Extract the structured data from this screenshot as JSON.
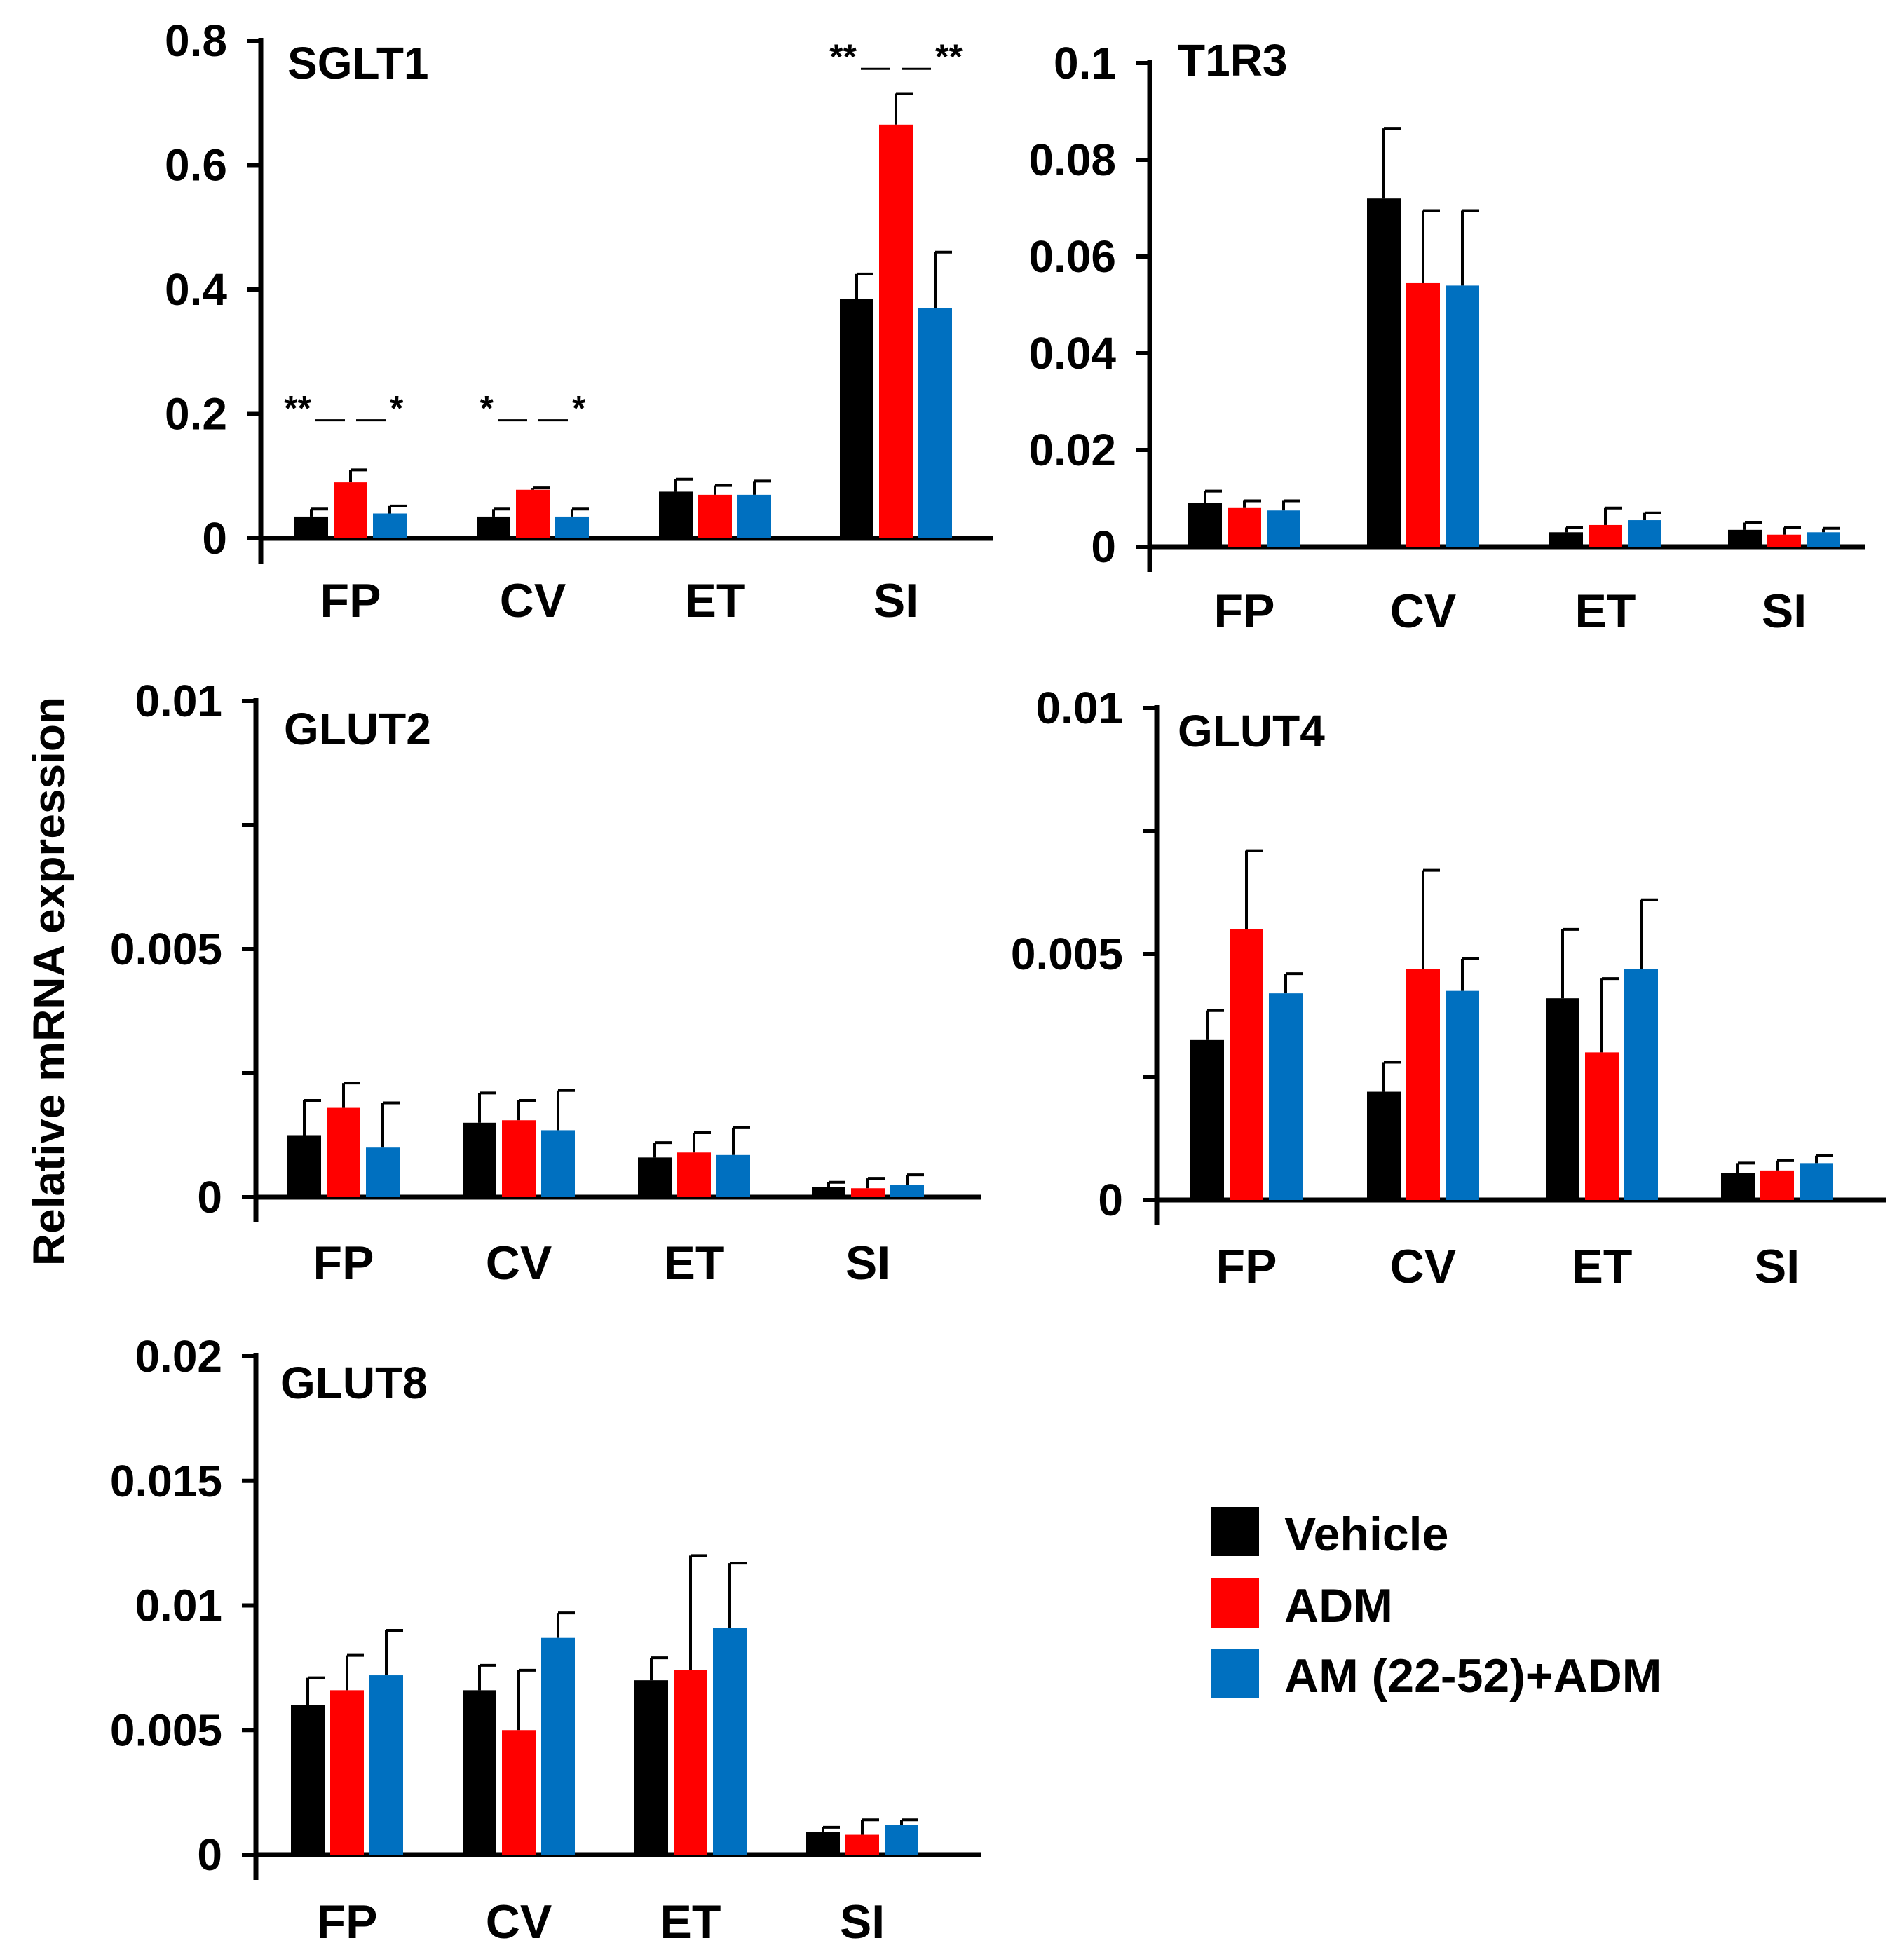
{
  "figure": {
    "ylabel": "Relative mRNA expression",
    "legend": [
      {
        "label": "Vehicle",
        "color": "#000000"
      },
      {
        "label": "ADM",
        "color": "#ff0000"
      },
      {
        "label": "AM (22-52)+ADM",
        "color": "#0070c0"
      }
    ]
  },
  "chart_data": [
    {
      "type": "bar",
      "title": "SGLT1",
      "categories": [
        "FP",
        "CV",
        "ET",
        "SI"
      ],
      "ylim": [
        0,
        0.8
      ],
      "yticks": [
        {
          "v": 0,
          "label": "0"
        },
        {
          "v": 0.2,
          "label": "0.2"
        },
        {
          "v": 0.4,
          "label": "0.4"
        },
        {
          "v": 0.6,
          "label": "0.6"
        },
        {
          "v": 0.8,
          "label": "0.8"
        }
      ],
      "series": [
        {
          "name": "Vehicle",
          "values": [
            0.035,
            0.035,
            0.075,
            0.385
          ],
          "errors": [
            0.012,
            0.012,
            0.02,
            0.04
          ]
        },
        {
          "name": "ADM",
          "values": [
            0.09,
            0.078,
            0.07,
            0.665
          ],
          "errors": [
            0.02,
            0.003,
            0.015,
            0.05
          ]
        },
        {
          "name": "AM (22-52)+ADM",
          "values": [
            0.04,
            0.035,
            0.07,
            0.37
          ],
          "errors": [
            0.012,
            0.012,
            0.022,
            0.09
          ]
        }
      ],
      "annotations": [
        {
          "category": 0,
          "left": "**",
          "right": "*",
          "y": 0.21
        },
        {
          "category": 1,
          "left": "*",
          "right": "*",
          "y": 0.21
        },
        {
          "category": 3,
          "left": "**",
          "right": "**",
          "y": 0.775
        }
      ]
    },
    {
      "type": "bar",
      "title": "T1R3",
      "categories": [
        "FP",
        "CV",
        "ET",
        "SI"
      ],
      "ylim": [
        0,
        0.1
      ],
      "yticks": [
        {
          "v": 0,
          "label": "0"
        },
        {
          "v": 0.02,
          "label": "0.02"
        },
        {
          "v": 0.04,
          "label": "0.04"
        },
        {
          "v": 0.06,
          "label": "0.06"
        },
        {
          "v": 0.08,
          "label": "0.08"
        },
        {
          "v": 0.1,
          "label": "0.1"
        }
      ],
      "series": [
        {
          "name": "Vehicle",
          "values": [
            0.009,
            0.072,
            0.003,
            0.0035
          ],
          "errors": [
            0.0025,
            0.0145,
            0.001,
            0.0015
          ]
        },
        {
          "name": "ADM",
          "values": [
            0.008,
            0.0545,
            0.0045,
            0.0025
          ],
          "errors": [
            0.0015,
            0.015,
            0.0035,
            0.0015
          ]
        },
        {
          "name": "AM (22-52)+ADM",
          "values": [
            0.0075,
            0.054,
            0.0055,
            0.003
          ],
          "errors": [
            0.002,
            0.0155,
            0.0015,
            0.0008
          ]
        }
      ],
      "annotations": []
    },
    {
      "type": "bar",
      "title": "GLUT2",
      "categories": [
        "FP",
        "CV",
        "ET",
        "SI"
      ],
      "ylim": [
        0,
        0.01
      ],
      "yticks": [
        {
          "v": 0,
          "label": "0"
        },
        {
          "v": 0.0025,
          "label": ""
        },
        {
          "v": 0.005,
          "label": "0.005"
        },
        {
          "v": 0.0075,
          "label": ""
        },
        {
          "v": 0.01,
          "label": "0.01"
        }
      ],
      "series": [
        {
          "name": "Vehicle",
          "values": [
            0.00125,
            0.0015,
            0.0008,
            0.0002
          ],
          "errors": [
            0.0007,
            0.0006,
            0.0003,
            0.0001
          ]
        },
        {
          "name": "ADM",
          "values": [
            0.0018,
            0.00155,
            0.0009,
            0.00018
          ],
          "errors": [
            0.0005,
            0.0004,
            0.0004,
            0.0002
          ]
        },
        {
          "name": "AM (22-52)+ADM",
          "values": [
            0.001,
            0.00135,
            0.00085,
            0.00025
          ],
          "errors": [
            0.0009,
            0.0008,
            0.00055,
            0.0002
          ]
        }
      ],
      "annotations": []
    },
    {
      "type": "bar",
      "title": "GLUT4",
      "categories": [
        "FP",
        "CV",
        "ET",
        "SI"
      ],
      "ylim": [
        0,
        0.01
      ],
      "yticks": [
        {
          "v": 0,
          "label": "0"
        },
        {
          "v": 0.0025,
          "label": ""
        },
        {
          "v": 0.005,
          "label": "0.005"
        },
        {
          "v": 0.0075,
          "label": ""
        },
        {
          "v": 0.01,
          "label": "0.01"
        }
      ],
      "series": [
        {
          "name": "Vehicle",
          "values": [
            0.00325,
            0.0022,
            0.0041,
            0.00055
          ],
          "errors": [
            0.0006,
            0.0006,
            0.0014,
            0.0002
          ]
        },
        {
          "name": "ADM",
          "values": [
            0.0055,
            0.0047,
            0.003,
            0.0006
          ],
          "errors": [
            0.0016,
            0.002,
            0.0015,
            0.0002
          ]
        },
        {
          "name": "AM (22-52)+ADM",
          "values": [
            0.0042,
            0.00425,
            0.0047,
            0.00075
          ],
          "errors": [
            0.0004,
            0.00065,
            0.0014,
            0.00015
          ]
        }
      ],
      "annotations": []
    },
    {
      "type": "bar",
      "title": "GLUT8",
      "categories": [
        "FP",
        "CV",
        "ET",
        "SI"
      ],
      "ylim": [
        0,
        0.02
      ],
      "yticks": [
        {
          "v": 0,
          "label": "0"
        },
        {
          "v": 0.005,
          "label": "0.005"
        },
        {
          "v": 0.01,
          "label": "0.01"
        },
        {
          "v": 0.015,
          "label": "0.015"
        },
        {
          "v": 0.02,
          "label": "0.02"
        }
      ],
      "series": [
        {
          "name": "Vehicle",
          "values": [
            0.006,
            0.0066,
            0.007,
            0.0009
          ],
          "errors": [
            0.0011,
            0.001,
            0.0009,
            0.0002
          ]
        },
        {
          "name": "ADM",
          "values": [
            0.0066,
            0.005,
            0.0074,
            0.0008
          ],
          "errors": [
            0.0014,
            0.0024,
            0.0046,
            0.0006
          ]
        },
        {
          "name": "AM (22-52)+ADM",
          "values": [
            0.0072,
            0.0087,
            0.0091,
            0.0012
          ],
          "errors": [
            0.0018,
            0.001,
            0.0026,
            0.0002
          ]
        }
      ],
      "annotations": []
    }
  ]
}
